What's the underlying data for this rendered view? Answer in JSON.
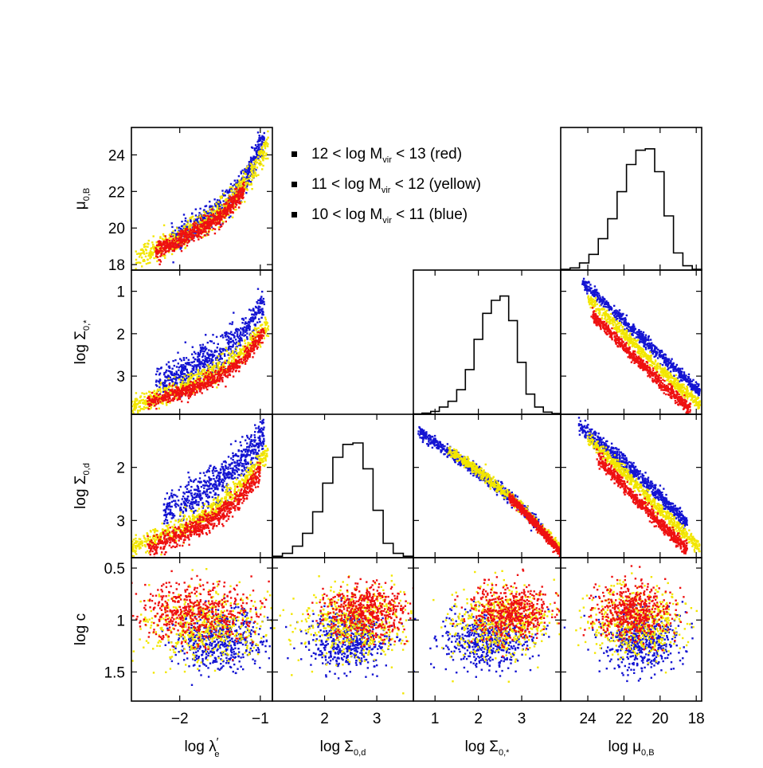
{
  "chart_data": {
    "type": "scatter",
    "layout": "corner-plot",
    "legend": {
      "placement": "top-middle",
      "entries": [
        {
          "text": "12 < log M",
          "sub": "vir",
          "rest": " < 13 (red)",
          "color": "#ee1111"
        },
        {
          "text": "11 < log M",
          "sub": "vir",
          "rest": " < 12 (yellow)",
          "color": "#f2e600"
        },
        {
          "text": "10 < log M",
          "sub": "vir",
          "rest": " < 11 (blue)",
          "color": "#1414d2"
        }
      ]
    },
    "variables": [
      {
        "id": "lambda",
        "label_main": "log λ",
        "label_sub": "e",
        "label_sup": "′",
        "range": [
          -2.6,
          -0.85
        ],
        "ticks": [
          -2,
          -1
        ],
        "tick_labels": [
          "−2",
          "−1"
        ],
        "reversed": false
      },
      {
        "id": "sigma_d",
        "label_main": "log Σ",
        "label_sub": "0,d",
        "range": [
          1.0,
          3.7
        ],
        "ticks": [
          2,
          3
        ],
        "tick_labels": [
          "2",
          "3"
        ],
        "reversed": false
      },
      {
        "id": "sigma_star",
        "label_main": "log Σ",
        "label_sub": "0,*",
        "range": [
          0.5,
          3.9
        ],
        "ticks": [
          1,
          2,
          3
        ],
        "tick_labels": [
          "1",
          "2",
          "3"
        ],
        "reversed": false
      },
      {
        "id": "mu",
        "label_main": "log μ",
        "label_sub": "0,B",
        "range": [
          25.5,
          17.7
        ],
        "ticks": [
          24,
          22,
          20,
          18
        ],
        "tick_labels": [
          "24",
          "22",
          "20",
          "18"
        ],
        "reversed": true
      }
    ],
    "rows": [
      {
        "var": "mu",
        "ylabel_main": "μ",
        "ylabel_sub": "0,B",
        "ylabel_prefix": "",
        "yrange": [
          25.5,
          17.7
        ],
        "yticks": [
          18,
          20,
          22,
          24
        ],
        "ytick_labels": [
          "18",
          "20",
          "22",
          "24"
        ]
      },
      {
        "var": "sigma_star",
        "ylabel_main": "Σ",
        "ylabel_sub": "0,*",
        "ylabel_prefix": "log ",
        "yrange": [
          0.5,
          3.9
        ],
        "yticks": [
          1,
          2,
          3
        ],
        "ytick_labels": [
          "1",
          "2",
          "3"
        ]
      },
      {
        "var": "sigma_d",
        "ylabel_main": "Σ",
        "ylabel_sub": "0,d",
        "ylabel_prefix": "log ",
        "yrange": [
          1.0,
          3.7
        ],
        "yticks": [
          2,
          3
        ],
        "ytick_labels": [
          "2",
          "3"
        ]
      },
      {
        "var": "logc",
        "ylabel_main": "log c",
        "ylabel_sub": "",
        "ylabel_prefix": "",
        "yrange": [
          0.4,
          1.78
        ],
        "yticks": [
          0.5,
          1,
          1.5
        ],
        "ytick_labels": [
          "0.5",
          "1",
          "1.5"
        ]
      }
    ],
    "panels": [
      {
        "row": 0,
        "col": 0,
        "kind": "scatter",
        "x": "lambda",
        "y": "mu"
      },
      {
        "row": 0,
        "col": 3,
        "kind": "histogram",
        "x": "mu",
        "counts": [
          0.5,
          1.5,
          5,
          11,
          22,
          36,
          55,
          74,
          84,
          85,
          69,
          38,
          12,
          3,
          0.5
        ]
      },
      {
        "row": 1,
        "col": 0,
        "kind": "scatter",
        "x": "lambda",
        "y": "sigma_star"
      },
      {
        "row": 1,
        "col": 2,
        "kind": "histogram",
        "x": "sigma_star",
        "counts": [
          0.3,
          0.8,
          2,
          5,
          9,
          17,
          31,
          52,
          70,
          79,
          82,
          65,
          36,
          14,
          5,
          1.5,
          0.5
        ]
      },
      {
        "row": 1,
        "col": 3,
        "kind": "scatter",
        "x": "mu",
        "y": "sigma_star"
      },
      {
        "row": 2,
        "col": 0,
        "kind": "scatter",
        "x": "lambda",
        "y": "sigma_d"
      },
      {
        "row": 2,
        "col": 1,
        "kind": "histogram",
        "x": "sigma_d",
        "counts": [
          1,
          3,
          8,
          17,
          32,
          52,
          70,
          79,
          80,
          62,
          33,
          10,
          3,
          1
        ]
      },
      {
        "row": 2,
        "col": 2,
        "kind": "scatter",
        "x": "sigma_star",
        "y": "sigma_d"
      },
      {
        "row": 2,
        "col": 3,
        "kind": "scatter",
        "x": "mu",
        "y": "sigma_d"
      },
      {
        "row": 3,
        "col": 0,
        "kind": "scatter",
        "x": "lambda",
        "y": "logc"
      },
      {
        "row": 3,
        "col": 1,
        "kind": "scatter",
        "x": "sigma_d",
        "y": "logc"
      },
      {
        "row": 3,
        "col": 2,
        "kind": "scatter",
        "x": "sigma_star",
        "y": "logc"
      },
      {
        "row": 3,
        "col": 3,
        "kind": "scatter",
        "x": "mu",
        "y": "logc"
      }
    ],
    "series_colors": {
      "red": "#ee1111",
      "yellow": "#f2e600",
      "blue": "#1414d2"
    },
    "series_models": {
      "lambda-mu": {
        "blue": {
          "x": [
            -2.1,
            -0.95
          ],
          "curve": [
            [
              -2.6,
              18.3
            ],
            [
              -2.0,
              19.5
            ],
            [
              -1.5,
              21.0
            ],
            [
              -1.2,
              22.5
            ],
            [
              -1.0,
              24.5
            ]
          ],
          "scatter": 0.35
        },
        "yellow": {
          "x": [
            -2.55,
            -0.9
          ],
          "curve": [
            [
              -2.6,
              18.3
            ],
            [
              -2.0,
              19.4
            ],
            [
              -1.5,
              20.8
            ],
            [
              -1.2,
              22.3
            ],
            [
              -0.95,
              24.2
            ]
          ],
          "scatter": 0.35
        },
        "red": {
          "x": [
            -2.3,
            -1.2
          ],
          "curve": [
            [
              -2.6,
              18.2
            ],
            [
              -2.0,
              19.3
            ],
            [
              -1.5,
              20.6
            ],
            [
              -1.2,
              22.0
            ]
          ],
          "scatter": 0.25
        }
      },
      "lambda-sigma_star": {
        "blue": {
          "x": [
            -2.3,
            -0.95
          ],
          "curve": [
            [
              -2.6,
              3.5
            ],
            [
              -2.0,
              2.95
            ],
            [
              -1.5,
              2.45
            ],
            [
              -1.2,
              1.95
            ],
            [
              -1.0,
              1.4
            ]
          ],
          "scatter": 0.2
        },
        "yellow": {
          "x": [
            -2.6,
            -0.9
          ],
          "curve": [
            [
              -2.6,
              3.7
            ],
            [
              -2.0,
              3.3
            ],
            [
              -1.5,
              2.8
            ],
            [
              -1.2,
              2.4
            ],
            [
              -0.95,
              1.9
            ]
          ],
          "scatter": 0.12
        },
        "red": {
          "x": [
            -2.4,
            -0.95
          ],
          "curve": [
            [
              -2.6,
              3.75
            ],
            [
              -2.0,
              3.4
            ],
            [
              -1.5,
              3.0
            ],
            [
              -1.2,
              2.6
            ],
            [
              -1.0,
              2.1
            ]
          ],
          "scatter": 0.09
        }
      },
      "lambda-sigma_d": {
        "blue": {
          "x": [
            -2.2,
            -0.95
          ],
          "curve": [
            [
              -2.6,
              3.15
            ],
            [
              -2.0,
              2.7
            ],
            [
              -1.5,
              2.25
            ],
            [
              -1.2,
              1.85
            ],
            [
              -1.0,
              1.45
            ]
          ],
          "scatter": 0.18
        },
        "yellow": {
          "x": [
            -2.6,
            -0.9
          ],
          "curve": [
            [
              -2.6,
              3.5
            ],
            [
              -2.0,
              3.15
            ],
            [
              -1.5,
              2.7
            ],
            [
              -1.2,
              2.3
            ],
            [
              -0.95,
              1.8
            ]
          ],
          "scatter": 0.1
        },
        "red": {
          "x": [
            -2.4,
            -1.0
          ],
          "curve": [
            [
              -2.6,
              3.6
            ],
            [
              -2.0,
              3.3
            ],
            [
              -1.5,
              2.9
            ],
            [
              -1.2,
              2.5
            ],
            [
              -1.0,
              2.1
            ]
          ],
          "scatter": 0.09
        }
      },
      "mu-sigma_star": {
        "blue": {
          "x": [
            24.3,
            17.8
          ],
          "curve": [
            [
              24.5,
              0.7
            ],
            [
              22,
              1.7
            ],
            [
              20,
              2.5
            ],
            [
              18,
              3.3
            ]
          ],
          "scatter": 0.07
        },
        "yellow": {
          "x": [
            24.0,
            17.8
          ],
          "curve": [
            [
              24.5,
              0.95
            ],
            [
              22,
              2.0
            ],
            [
              20,
              2.85
            ],
            [
              18,
              3.6
            ]
          ],
          "scatter": 0.07
        },
        "red": {
          "x": [
            23.8,
            18.3
          ],
          "curve": [
            [
              24.5,
              1.25
            ],
            [
              22,
              2.3
            ],
            [
              20,
              3.15
            ],
            [
              18,
              3.9
            ]
          ],
          "scatter": 0.07
        }
      },
      "sigma_star-sigma_d": {
        "blue": {
          "x": [
            0.6,
            3.5
          ],
          "curve": [
            [
              0.5,
              1.25
            ],
            [
              2,
              2.1
            ],
            [
              3,
              2.75
            ],
            [
              3.9,
              3.5
            ]
          ],
          "scatter": 0.06
        },
        "yellow": {
          "x": [
            1.3,
            3.9
          ],
          "curve": [
            [
              0.5,
              1.2
            ],
            [
              2,
              2.07
            ],
            [
              3,
              2.75
            ],
            [
              3.9,
              3.55
            ]
          ],
          "scatter": 0.05
        },
        "red": {
          "x": [
            2.7,
            3.9
          ],
          "curve": [
            [
              0.5,
              1.2
            ],
            [
              2,
              2.05
            ],
            [
              3,
              2.78
            ],
            [
              3.9,
              3.6
            ]
          ],
          "scatter": 0.04
        }
      },
      "mu-sigma_d": {
        "blue": {
          "x": [
            24.5,
            18.5
          ],
          "curve": [
            [
              24.5,
              1.2
            ],
            [
              22,
              1.9
            ],
            [
              20,
              2.55
            ],
            [
              18,
              3.25
            ]
          ],
          "scatter": 0.07
        },
        "yellow": {
          "x": [
            24.0,
            17.8
          ],
          "curve": [
            [
              24.5,
              1.3
            ],
            [
              22,
              2.1
            ],
            [
              20,
              2.8
            ],
            [
              18,
              3.45
            ]
          ],
          "scatter": 0.06
        },
        "red": {
          "x": [
            23.5,
            18.5
          ],
          "curve": [
            [
              24.5,
              1.45
            ],
            [
              22,
              2.35
            ],
            [
              20,
              3.05
            ],
            [
              18,
              3.7
            ]
          ],
          "scatter": 0.06
        }
      },
      "lambda-logc": {
        "blue": {
          "xmean": -1.5,
          "xsd": 0.28,
          "ymean": 1.2,
          "ysd": 0.14
        },
        "yellow": {
          "xmean": -1.7,
          "xsd": 0.42,
          "ymean": 1.05,
          "ysd": 0.16
        },
        "red": {
          "xmean": -1.8,
          "xsd": 0.38,
          "ymean": 0.92,
          "ysd": 0.14
        }
      },
      "sigma_d-logc": {
        "blue": {
          "xmean": 2.45,
          "xsd": 0.38,
          "ymean": 1.2,
          "ysd": 0.14
        },
        "yellow": {
          "xmean": 2.55,
          "xsd": 0.5,
          "ymean": 1.02,
          "ysd": 0.16
        },
        "red": {
          "xmean": 2.8,
          "xsd": 0.38,
          "ymean": 0.92,
          "ysd": 0.13
        }
      },
      "sigma_star-logc": {
        "blue": {
          "xmean": 2.2,
          "xsd": 0.5,
          "ymean": 1.2,
          "ysd": 0.14
        },
        "yellow": {
          "xmean": 2.5,
          "xsd": 0.55,
          "ymean": 1.02,
          "ysd": 0.16
        },
        "red": {
          "xmean": 2.75,
          "xsd": 0.45,
          "ymean": 0.92,
          "ysd": 0.13
        }
      },
      "mu-logc": {
        "blue": {
          "xmean": 21.0,
          "xsd": 1.0,
          "ymean": 1.2,
          "ysd": 0.14
        },
        "yellow": {
          "xmean": 21.3,
          "xsd": 1.3,
          "ymean": 1.02,
          "ysd": 0.16
        },
        "red": {
          "xmean": 21.5,
          "xsd": 1.1,
          "ymean": 0.92,
          "ysd": 0.13
        }
      }
    }
  }
}
